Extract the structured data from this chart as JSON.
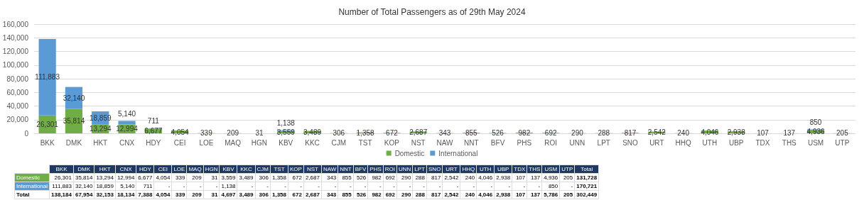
{
  "chart_data": {
    "type": "bar",
    "title": "Number of Total Passengers as of 29th May 2024",
    "stacked": true,
    "legend": "bottom",
    "grid": "y",
    "categories": [
      "BKK",
      "DMK",
      "HKT",
      "CNX",
      "HDY",
      "CEI",
      "LOE",
      "MAQ",
      "HGN",
      "KBV",
      "KKC",
      "CJM",
      "TST",
      "KOP",
      "NST",
      "NAW",
      "NNT",
      "BFV",
      "PHS",
      "ROI",
      "UNN",
      "LPT",
      "SNO",
      "URT",
      "HHQ",
      "UTH",
      "UBP",
      "TDX",
      "THS",
      "USM",
      "UTP"
    ],
    "series": [
      {
        "name": "Domestic",
        "color": "#70ad47",
        "values": [
          26301,
          35814,
          13294,
          12994,
          6677,
          4054,
          339,
          209,
          31,
          3559,
          3489,
          306,
          1358,
          672,
          2687,
          343,
          855,
          526,
          982,
          692,
          290,
          288,
          817,
          2542,
          240,
          4046,
          2938,
          107,
          137,
          4936,
          205
        ],
        "value_labels": [
          "26,301",
          "35,814",
          "13,294",
          "12,994",
          "6,677",
          "4,054",
          "339",
          "209",
          "31",
          "3,559",
          "3,489",
          "306",
          "1,358",
          "672",
          "2,687",
          "343",
          "855",
          "526",
          "982",
          "692",
          "290",
          "288",
          "817",
          "2,542",
          "240",
          "4,046",
          "2,938",
          "107",
          "137",
          "4,936",
          "205"
        ]
      },
      {
        "name": "International",
        "color": "#5b9bd5",
        "values": [
          111883,
          32140,
          18859,
          5140,
          711,
          null,
          null,
          null,
          null,
          1138,
          null,
          null,
          null,
          null,
          null,
          null,
          null,
          null,
          null,
          null,
          null,
          null,
          null,
          null,
          null,
          null,
          null,
          null,
          null,
          850,
          null
        ],
        "value_labels": [
          "111,883",
          "32,140",
          "18,859",
          "5,140",
          "711",
          "-",
          "-",
          "-",
          "-",
          "1,138",
          "-",
          "-",
          "-",
          "-",
          "-",
          "-",
          "-",
          "-",
          "-",
          "-",
          "-",
          "-",
          "-",
          "-",
          "-",
          "-",
          "-",
          "-",
          "-",
          "850",
          "-"
        ]
      }
    ],
    "annotations": [
      "Total",
      "131,728",
      "170,721",
      "302,449",
      "138,184",
      "67,954",
      "32,153",
      "18,134",
      "7,388",
      "4,054",
      "339",
      "209",
      "31",
      "4,697",
      "3,489",
      "306",
      "1,358",
      "672",
      "2,687",
      "343",
      "855",
      "526",
      "982",
      "692",
      "290",
      "288",
      "817",
      "2,542",
      "240",
      "4,046",
      "2,938",
      "107",
      "137",
      "5,786",
      "205"
    ],
    "ylim": [
      0,
      160000
    ],
    "yticks": [
      {
        "value": 0,
        "label": "0"
      },
      {
        "value": 20000,
        "label": "20,000"
      },
      {
        "value": 40000,
        "label": "40,000"
      },
      {
        "value": 60000,
        "label": "60,000"
      },
      {
        "value": 80000,
        "label": "80,000"
      },
      {
        "value": 100000,
        "label": "100,000"
      },
      {
        "value": 120000,
        "label": "120,000"
      },
      {
        "value": 140000,
        "label": "140,000"
      },
      {
        "value": 160000,
        "label": "160,000"
      }
    ]
  }
}
